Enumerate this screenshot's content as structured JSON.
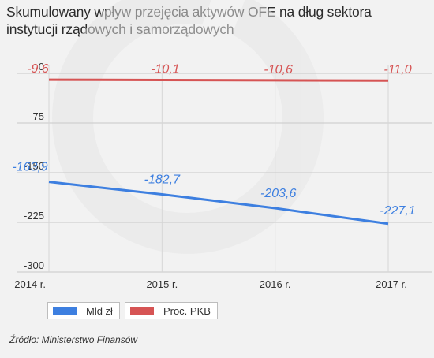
{
  "title": "Skumulowany wpływ przejęcia aktywów OFE na dług sektora instytucji rządowych i samorządowych",
  "source": "Źródło: Ministerstwo Finansów",
  "chart_data": {
    "type": "line",
    "categories": [
      "2014 r.",
      "2015 r.",
      "2016 r.",
      "2017 r."
    ],
    "ylim": [
      -300,
      0
    ],
    "yticks": [
      0,
      -75,
      -150,
      -225,
      -300
    ],
    "ytick_labels": [
      "0",
      "-75",
      "-150",
      "-225",
      "-300"
    ],
    "grid": true,
    "legend_position": "bottom-left",
    "series": [
      {
        "name": "Mld zł",
        "color": "#3d7fe0",
        "values": [
          -163.9,
          -182.7,
          -203.6,
          -227.1
        ],
        "labels": [
          "-163,9",
          "-182,7",
          "-203,6",
          "-227,1"
        ]
      },
      {
        "name": "Proc. PKB",
        "color": "#d65454",
        "values": [
          -9.6,
          -10.1,
          -10.6,
          -11.0
        ],
        "labels": [
          "-9,6",
          "-10,1",
          "-10,6",
          "-11,0"
        ]
      }
    ]
  }
}
